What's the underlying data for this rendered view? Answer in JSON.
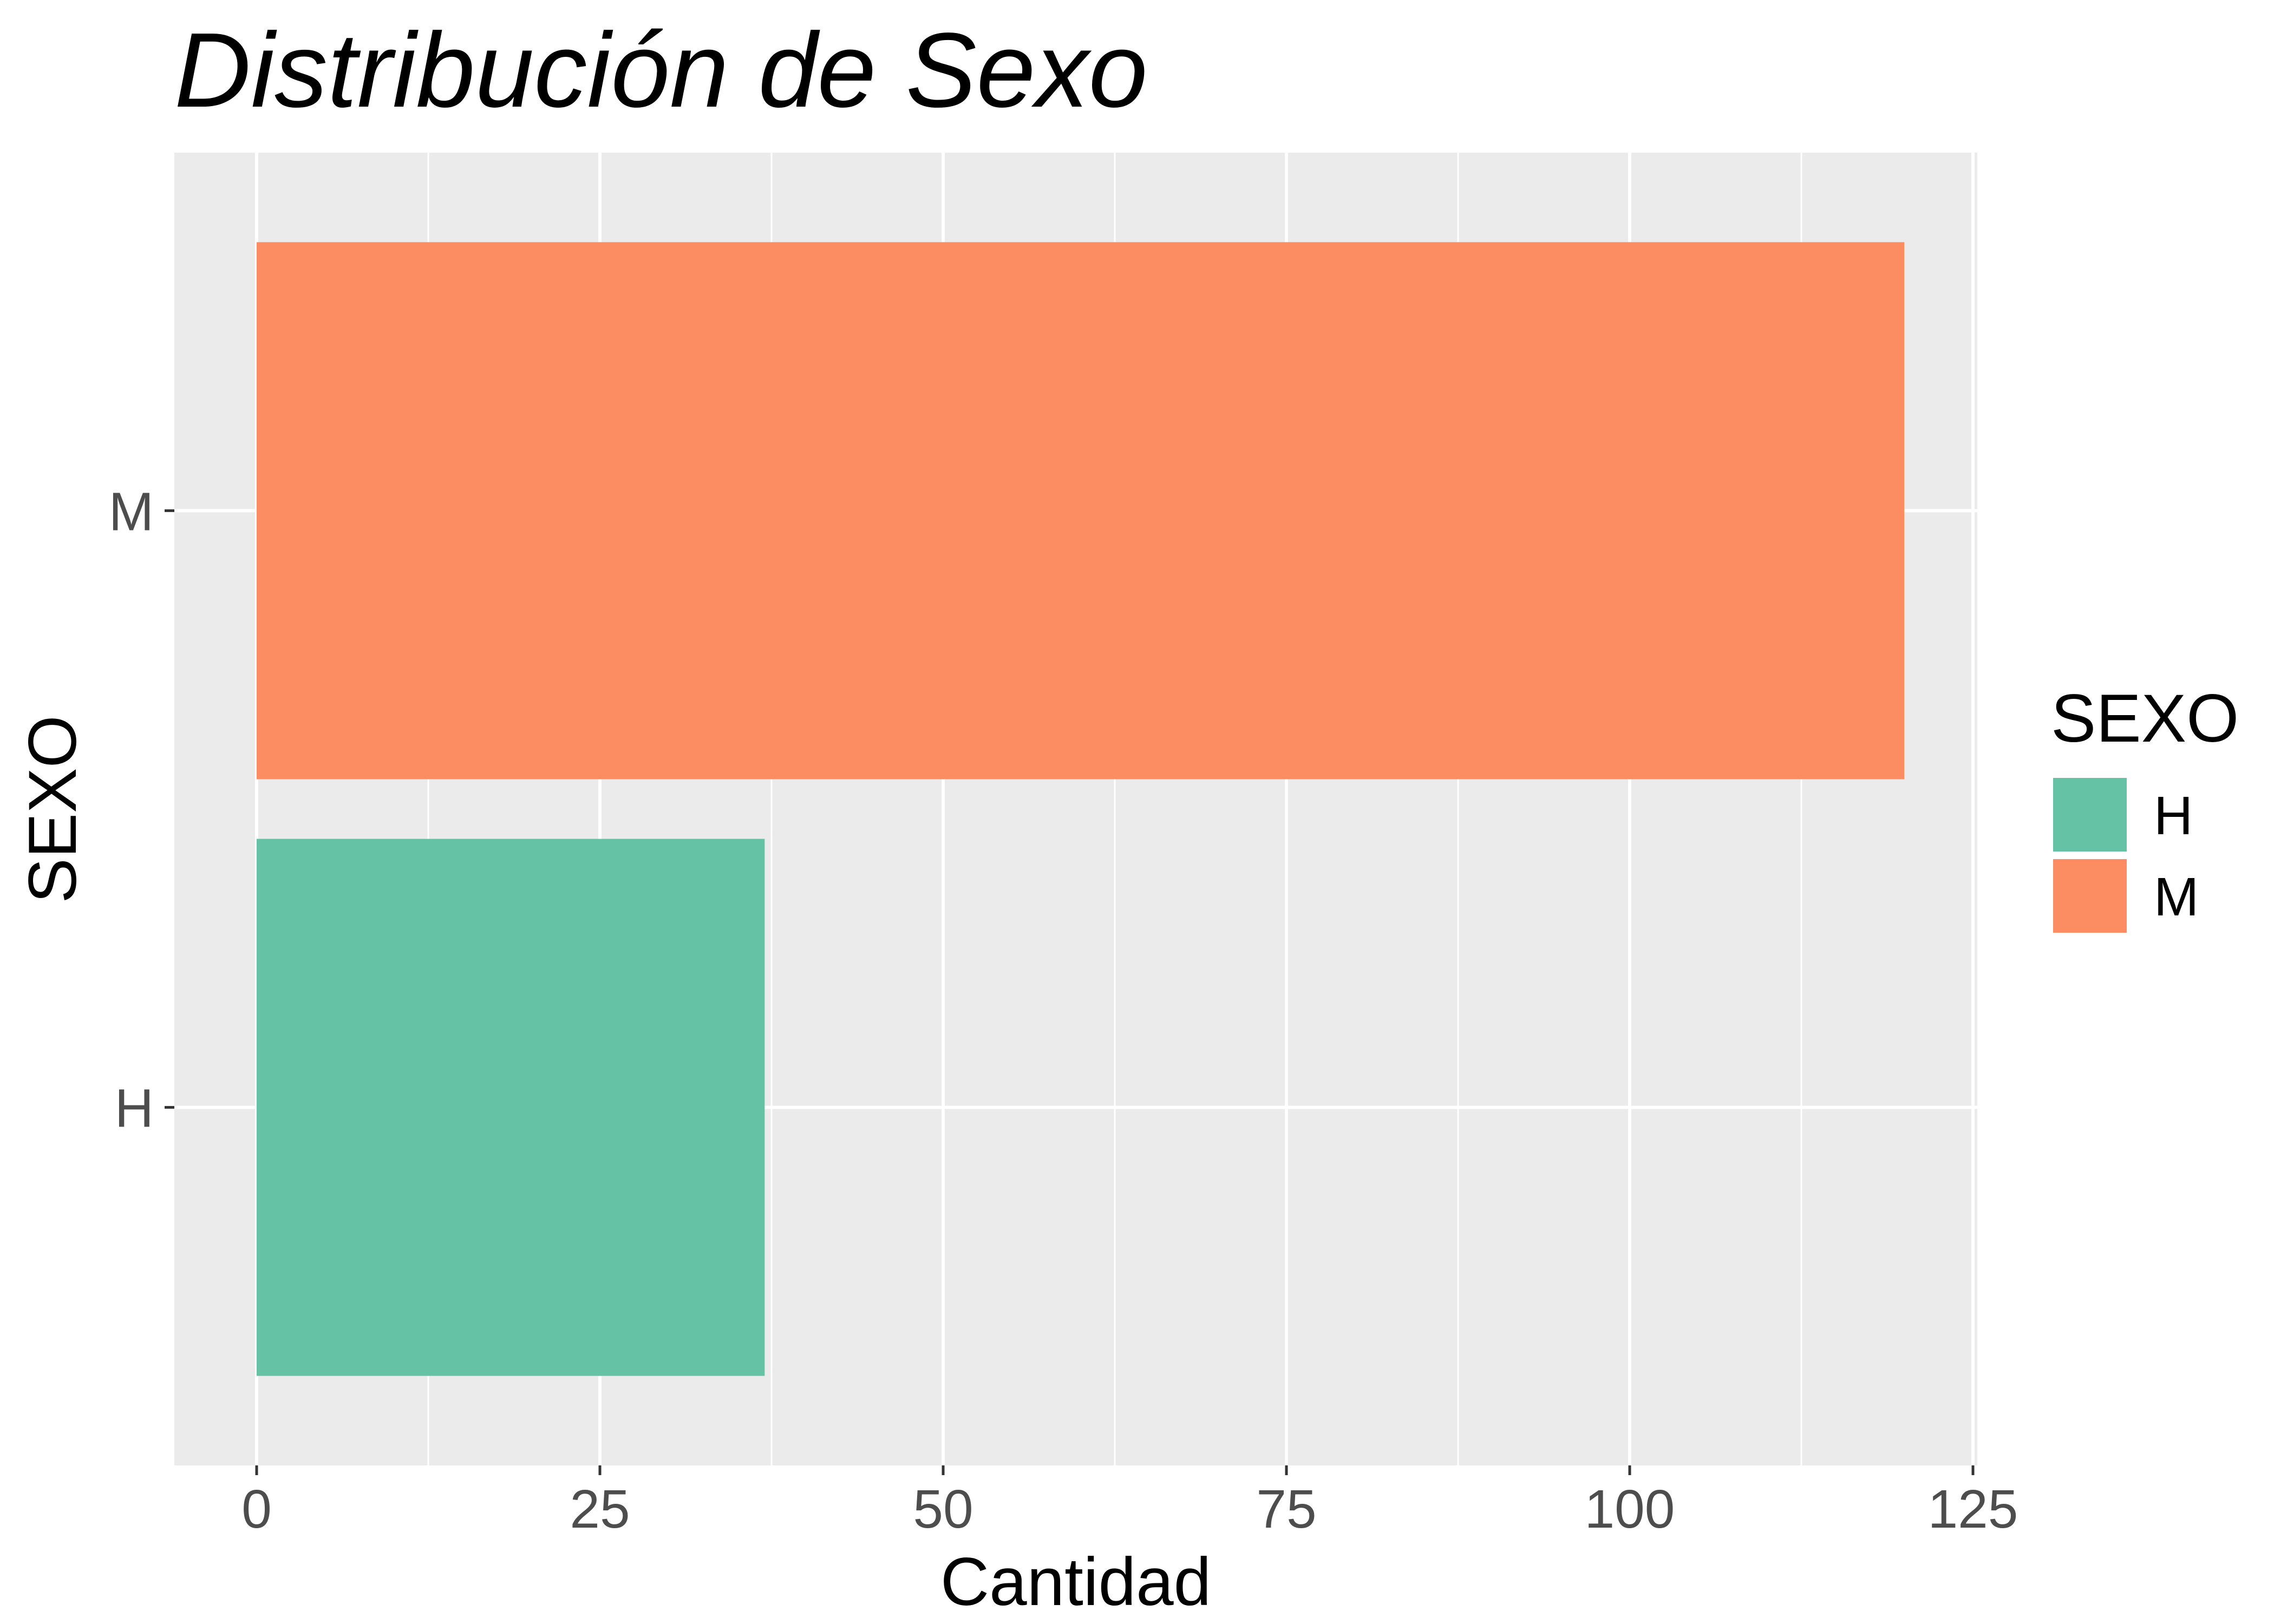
{
  "chart_data": {
    "type": "bar",
    "orientation": "horizontal",
    "title": "Distribución de Sexo",
    "xlabel": "Cantidad",
    "ylabel": "SEXO",
    "categories": [
      "H",
      "M"
    ],
    "values": [
      37,
      120
    ],
    "xlim": [
      0,
      125
    ],
    "x_ticks": [
      "0",
      "25",
      "50",
      "75",
      "100",
      "125"
    ],
    "x_tick_values": [
      0,
      25,
      50,
      75,
      100,
      125
    ],
    "colors": {
      "H": "#66c2a5",
      "M": "#fc8d62"
    },
    "grid": true,
    "panel_background": "#ebebeb",
    "legend": {
      "title": "SEXO",
      "placement": "right",
      "items": [
        "H",
        "M"
      ]
    }
  }
}
